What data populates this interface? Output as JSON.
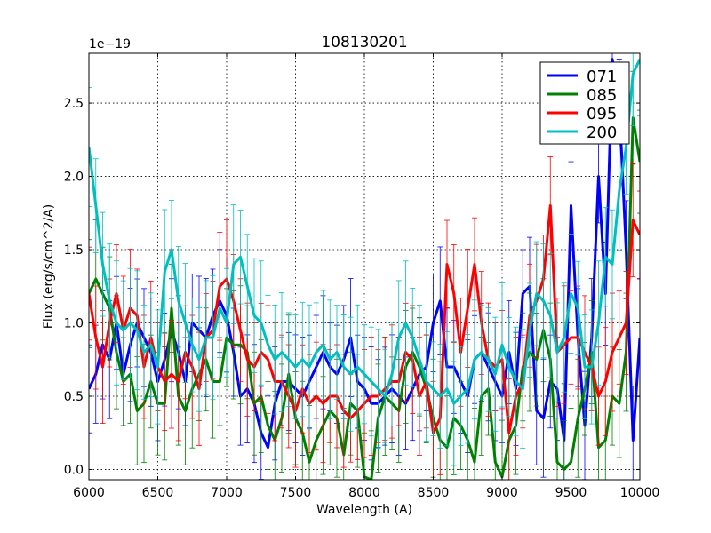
{
  "chart_data": {
    "type": "line",
    "title": "108130201",
    "xlabel": "Wavelength (A)",
    "ylabel": "Flux (erg/s/cm^2/A)",
    "offset_label": "1e−19",
    "xlim": [
      6000,
      10000
    ],
    "ylim": [
      -0.07,
      2.84
    ],
    "xticks": [
      6000,
      6500,
      7000,
      7500,
      8000,
      8500,
      9000,
      9500,
      10000
    ],
    "xtick_labels": [
      "6000",
      "6500",
      "7000",
      "7500",
      "8000",
      "8500",
      "9000",
      "9500",
      "10000"
    ],
    "yticks": [
      0.0,
      0.5,
      1.0,
      1.5,
      2.0,
      2.5
    ],
    "ytick_labels": [
      "0.0",
      "0.5",
      "1.0",
      "1.5",
      "2.0",
      "2.5"
    ],
    "grid": true,
    "legend_position": "top-right",
    "x": [
      6000,
      6050,
      6100,
      6150,
      6200,
      6250,
      6300,
      6350,
      6400,
      6450,
      6500,
      6550,
      6600,
      6650,
      6700,
      6750,
      6800,
      6850,
      6900,
      6950,
      7000,
      7050,
      7100,
      7150,
      7200,
      7250,
      7300,
      7350,
      7400,
      7450,
      7500,
      7550,
      7600,
      7650,
      7700,
      7750,
      7800,
      7850,
      7900,
      7950,
      8000,
      8050,
      8100,
      8150,
      8200,
      8250,
      8300,
      8350,
      8400,
      8450,
      8500,
      8550,
      8600,
      8650,
      8700,
      8750,
      8800,
      8850,
      8900,
      8950,
      9000,
      9050,
      9100,
      9150,
      9200,
      9250,
      9300,
      9350,
      9400,
      9450,
      9500,
      9550,
      9600,
      9650,
      9700,
      9750,
      9800,
      9850,
      9900,
      9950,
      10000
    ],
    "series": [
      {
        "name": "071",
        "color": "#0000ff",
        "err": 0.3,
        "values": [
          0.55,
          0.65,
          0.85,
          0.75,
          1.0,
          0.65,
          0.85,
          1.0,
          0.9,
          0.8,
          0.6,
          0.75,
          0.95,
          0.8,
          0.6,
          1.0,
          0.95,
          0.9,
          1.05,
          1.15,
          1.05,
          0.8,
          0.5,
          0.55,
          0.45,
          0.25,
          0.15,
          0.45,
          0.6,
          0.6,
          0.55,
          0.5,
          0.6,
          0.7,
          0.8,
          0.7,
          0.65,
          0.75,
          0.9,
          0.6,
          0.55,
          0.45,
          0.45,
          0.5,
          0.55,
          0.5,
          0.45,
          0.55,
          0.65,
          0.7,
          1.0,
          1.15,
          0.7,
          0.7,
          0.6,
          0.5,
          0.75,
          0.8,
          0.7,
          0.6,
          0.5,
          0.8,
          0.55,
          1.2,
          1.25,
          0.4,
          0.35,
          0.6,
          0.55,
          0.2,
          1.8,
          0.9,
          0.3,
          0.9,
          2.0,
          1.2,
          2.8,
          2.5,
          1.5,
          0.2,
          0.9
        ]
      },
      {
        "name": "085",
        "color": "#008000",
        "err": 0.3,
        "values": [
          1.2,
          1.3,
          1.2,
          1.1,
          0.8,
          0.6,
          0.65,
          0.4,
          0.45,
          0.6,
          0.45,
          0.45,
          1.1,
          0.5,
          0.4,
          0.55,
          0.65,
          0.75,
          0.6,
          0.6,
          0.9,
          0.85,
          0.85,
          0.8,
          0.45,
          0.5,
          0.3,
          0.2,
          0.35,
          0.65,
          0.35,
          0.25,
          0.05,
          0.2,
          0.3,
          0.4,
          0.35,
          0.1,
          0.45,
          0.4,
          -0.05,
          -0.07,
          0.35,
          0.5,
          0.45,
          0.4,
          0.7,
          0.8,
          0.7,
          0.55,
          0.35,
          0.2,
          0.15,
          0.35,
          0.3,
          0.2,
          0.05,
          0.5,
          0.55,
          0.05,
          -0.05,
          0.2,
          0.3,
          0.7,
          0.8,
          0.75,
          0.95,
          0.75,
          0.05,
          0.0,
          0.05,
          0.35,
          0.55,
          0.8,
          0.15,
          0.2,
          0.5,
          0.45,
          0.8,
          2.4,
          2.1
        ]
      },
      {
        "name": "095",
        "color": "#ff0000",
        "err": 0.3,
        "values": [
          1.2,
          0.9,
          0.7,
          1.0,
          1.2,
          0.95,
          1.1,
          1.05,
          0.7,
          0.9,
          0.7,
          0.6,
          0.65,
          0.6,
          0.8,
          0.7,
          0.55,
          0.9,
          0.95,
          1.25,
          1.3,
          1.15,
          0.95,
          0.75,
          0.7,
          0.8,
          0.75,
          0.6,
          0.6,
          0.5,
          0.4,
          0.55,
          0.45,
          0.5,
          0.45,
          0.5,
          0.5,
          0.4,
          0.35,
          0.4,
          0.45,
          0.5,
          0.5,
          0.55,
          0.6,
          0.6,
          0.8,
          0.75,
          0.5,
          0.6,
          0.25,
          0.35,
          1.4,
          1.2,
          0.8,
          1.1,
          1.4,
          1.0,
          0.75,
          0.7,
          0.75,
          0.25,
          0.5,
          0.6,
          1.05,
          1.15,
          1.3,
          1.8,
          0.8,
          0.85,
          0.9,
          0.9,
          0.8,
          0.7,
          0.5,
          0.6,
          0.8,
          0.9,
          1.0,
          1.7,
          1.6
        ]
      },
      {
        "name": "200",
        "color": "#00bfbf",
        "err": 0.32,
        "values": [
          2.2,
          1.8,
          1.4,
          1.15,
          1.0,
          0.95,
          1.0,
          0.95,
          0.8,
          0.85,
          0.7,
          1.35,
          1.5,
          1.15,
          1.0,
          0.85,
          0.75,
          0.9,
          0.9,
          1.1,
          1.0,
          1.4,
          1.45,
          1.25,
          1.05,
          1.0,
          0.85,
          0.75,
          0.8,
          0.75,
          0.7,
          0.75,
          0.7,
          0.8,
          0.85,
          0.75,
          0.8,
          0.7,
          0.65,
          0.7,
          0.65,
          0.6,
          0.55,
          0.5,
          0.65,
          0.9,
          1.0,
          0.9,
          0.75,
          0.6,
          0.55,
          0.5,
          0.55,
          0.45,
          0.5,
          0.55,
          0.75,
          0.8,
          0.75,
          0.65,
          0.85,
          0.7,
          0.6,
          0.55,
          0.95,
          1.2,
          1.15,
          1.05,
          0.8,
          0.9,
          1.2,
          1.1,
          0.7,
          0.7,
          1.0,
          1.45,
          1.4,
          1.9,
          2.2,
          2.7,
          2.8
        ]
      }
    ]
  }
}
